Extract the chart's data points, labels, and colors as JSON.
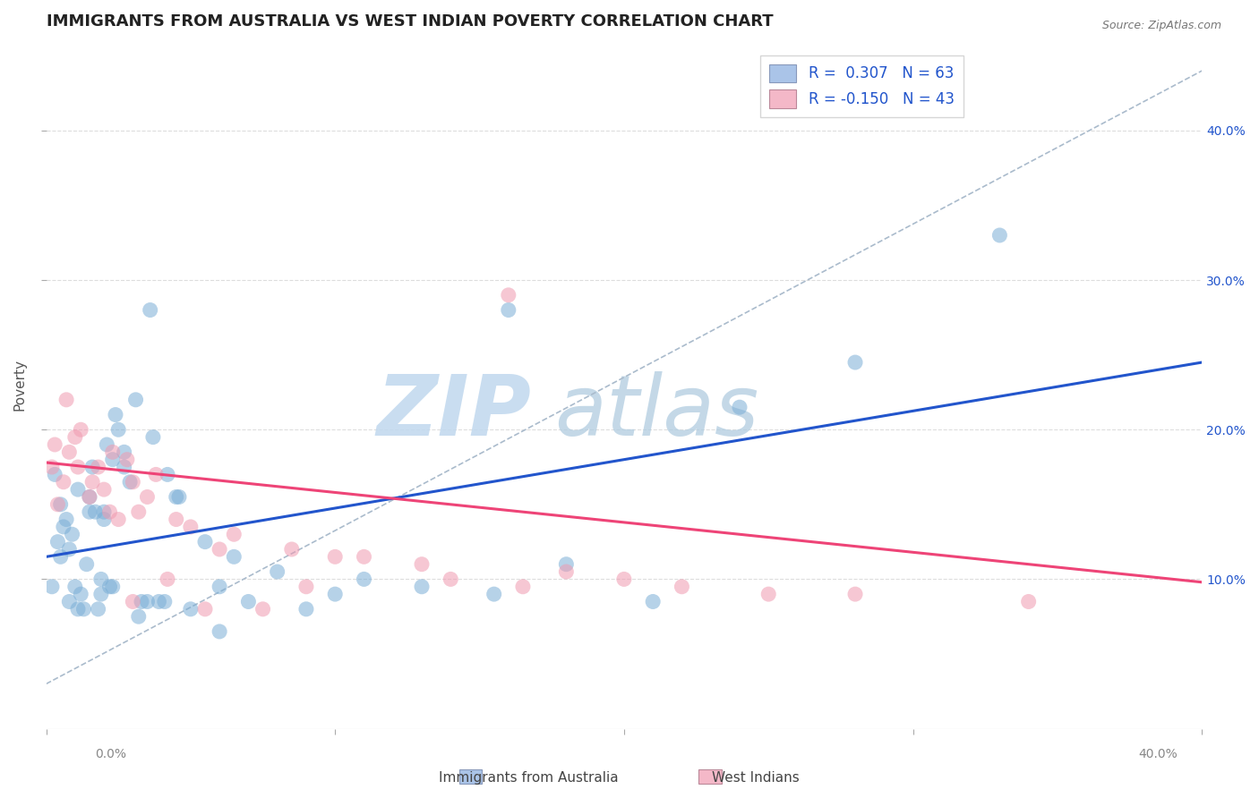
{
  "title": "IMMIGRANTS FROM AUSTRALIA VS WEST INDIAN POVERTY CORRELATION CHART",
  "source": "Source: ZipAtlas.com",
  "ylabel": "Poverty",
  "right_ytick_labels": [
    "10.0%",
    "20.0%",
    "30.0%",
    "40.0%"
  ],
  "right_ytick_values": [
    0.1,
    0.2,
    0.3,
    0.4
  ],
  "xmin": 0.0,
  "xmax": 0.4,
  "ymin": 0.0,
  "ymax": 0.46,
  "legend_r1": "R =  0.307",
  "legend_n1": "N = 63",
  "legend_r2": "R = -0.150",
  "legend_n2": "N = 43",
  "legend_color1": "#aac4e8",
  "legend_color2": "#f4b8c8",
  "dot_color_blue": "#7aaed6",
  "dot_color_pink": "#f09ab0",
  "line_color_blue": "#2255cc",
  "line_color_pink": "#ee4477",
  "line_color_trend_gray": "#aabbcc",
  "watermark_zip": "ZIP",
  "watermark_atlas": "atlas",
  "watermark_color_zip": "#c0d8ee",
  "watermark_color_atlas": "#b0cce0",
  "background_color": "#ffffff",
  "grid_color": "#dddddd",
  "xlabel_bottom_left": "Immigrants from Australia",
  "xlabel_bottom_right": "West Indians",
  "blue_scatter_x": [
    0.003,
    0.008,
    0.01,
    0.012,
    0.014,
    0.016,
    0.018,
    0.02,
    0.022,
    0.024,
    0.002,
    0.005,
    0.007,
    0.009,
    0.011,
    0.013,
    0.015,
    0.017,
    0.019,
    0.021,
    0.023,
    0.025,
    0.027,
    0.029,
    0.031,
    0.033,
    0.036,
    0.039,
    0.042,
    0.046,
    0.004,
    0.006,
    0.008,
    0.011,
    0.015,
    0.019,
    0.023,
    0.027,
    0.032,
    0.037,
    0.041,
    0.045,
    0.05,
    0.055,
    0.06,
    0.065,
    0.07,
    0.08,
    0.09,
    0.1,
    0.11,
    0.13,
    0.155,
    0.18,
    0.21,
    0.24,
    0.28,
    0.33,
    0.005,
    0.02,
    0.035,
    0.06,
    0.16
  ],
  "blue_scatter_y": [
    0.17,
    0.085,
    0.095,
    0.09,
    0.11,
    0.175,
    0.08,
    0.145,
    0.095,
    0.21,
    0.095,
    0.115,
    0.14,
    0.13,
    0.16,
    0.08,
    0.155,
    0.145,
    0.1,
    0.19,
    0.095,
    0.2,
    0.185,
    0.165,
    0.22,
    0.085,
    0.28,
    0.085,
    0.17,
    0.155,
    0.125,
    0.135,
    0.12,
    0.08,
    0.145,
    0.09,
    0.18,
    0.175,
    0.075,
    0.195,
    0.085,
    0.155,
    0.08,
    0.125,
    0.095,
    0.115,
    0.085,
    0.105,
    0.08,
    0.09,
    0.1,
    0.095,
    0.09,
    0.11,
    0.085,
    0.215,
    0.245,
    0.33,
    0.15,
    0.14,
    0.085,
    0.065,
    0.28
  ],
  "pink_scatter_x": [
    0.002,
    0.004,
    0.006,
    0.008,
    0.01,
    0.012,
    0.015,
    0.018,
    0.02,
    0.022,
    0.025,
    0.028,
    0.03,
    0.035,
    0.038,
    0.042,
    0.05,
    0.06,
    0.075,
    0.1,
    0.13,
    0.165,
    0.2,
    0.25,
    0.003,
    0.007,
    0.011,
    0.016,
    0.023,
    0.032,
    0.045,
    0.065,
    0.085,
    0.11,
    0.14,
    0.18,
    0.22,
    0.28,
    0.34,
    0.16,
    0.09,
    0.055,
    0.03
  ],
  "pink_scatter_y": [
    0.175,
    0.15,
    0.165,
    0.185,
    0.195,
    0.2,
    0.155,
    0.175,
    0.16,
    0.145,
    0.14,
    0.18,
    0.165,
    0.155,
    0.17,
    0.1,
    0.135,
    0.12,
    0.08,
    0.115,
    0.11,
    0.095,
    0.1,
    0.09,
    0.19,
    0.22,
    0.175,
    0.165,
    0.185,
    0.145,
    0.14,
    0.13,
    0.12,
    0.115,
    0.1,
    0.105,
    0.095,
    0.09,
    0.085,
    0.29,
    0.095,
    0.08,
    0.085
  ],
  "trend_line_x": [
    0.0,
    0.4
  ],
  "blue_trend_y": [
    0.115,
    0.245
  ],
  "pink_trend_y": [
    0.178,
    0.098
  ],
  "dashed_line_x": [
    0.0,
    0.4
  ],
  "dashed_line_y": [
    0.03,
    0.44
  ],
  "title_fontsize": 13,
  "axis_label_fontsize": 11,
  "tick_fontsize": 10,
  "legend_fontsize": 12
}
